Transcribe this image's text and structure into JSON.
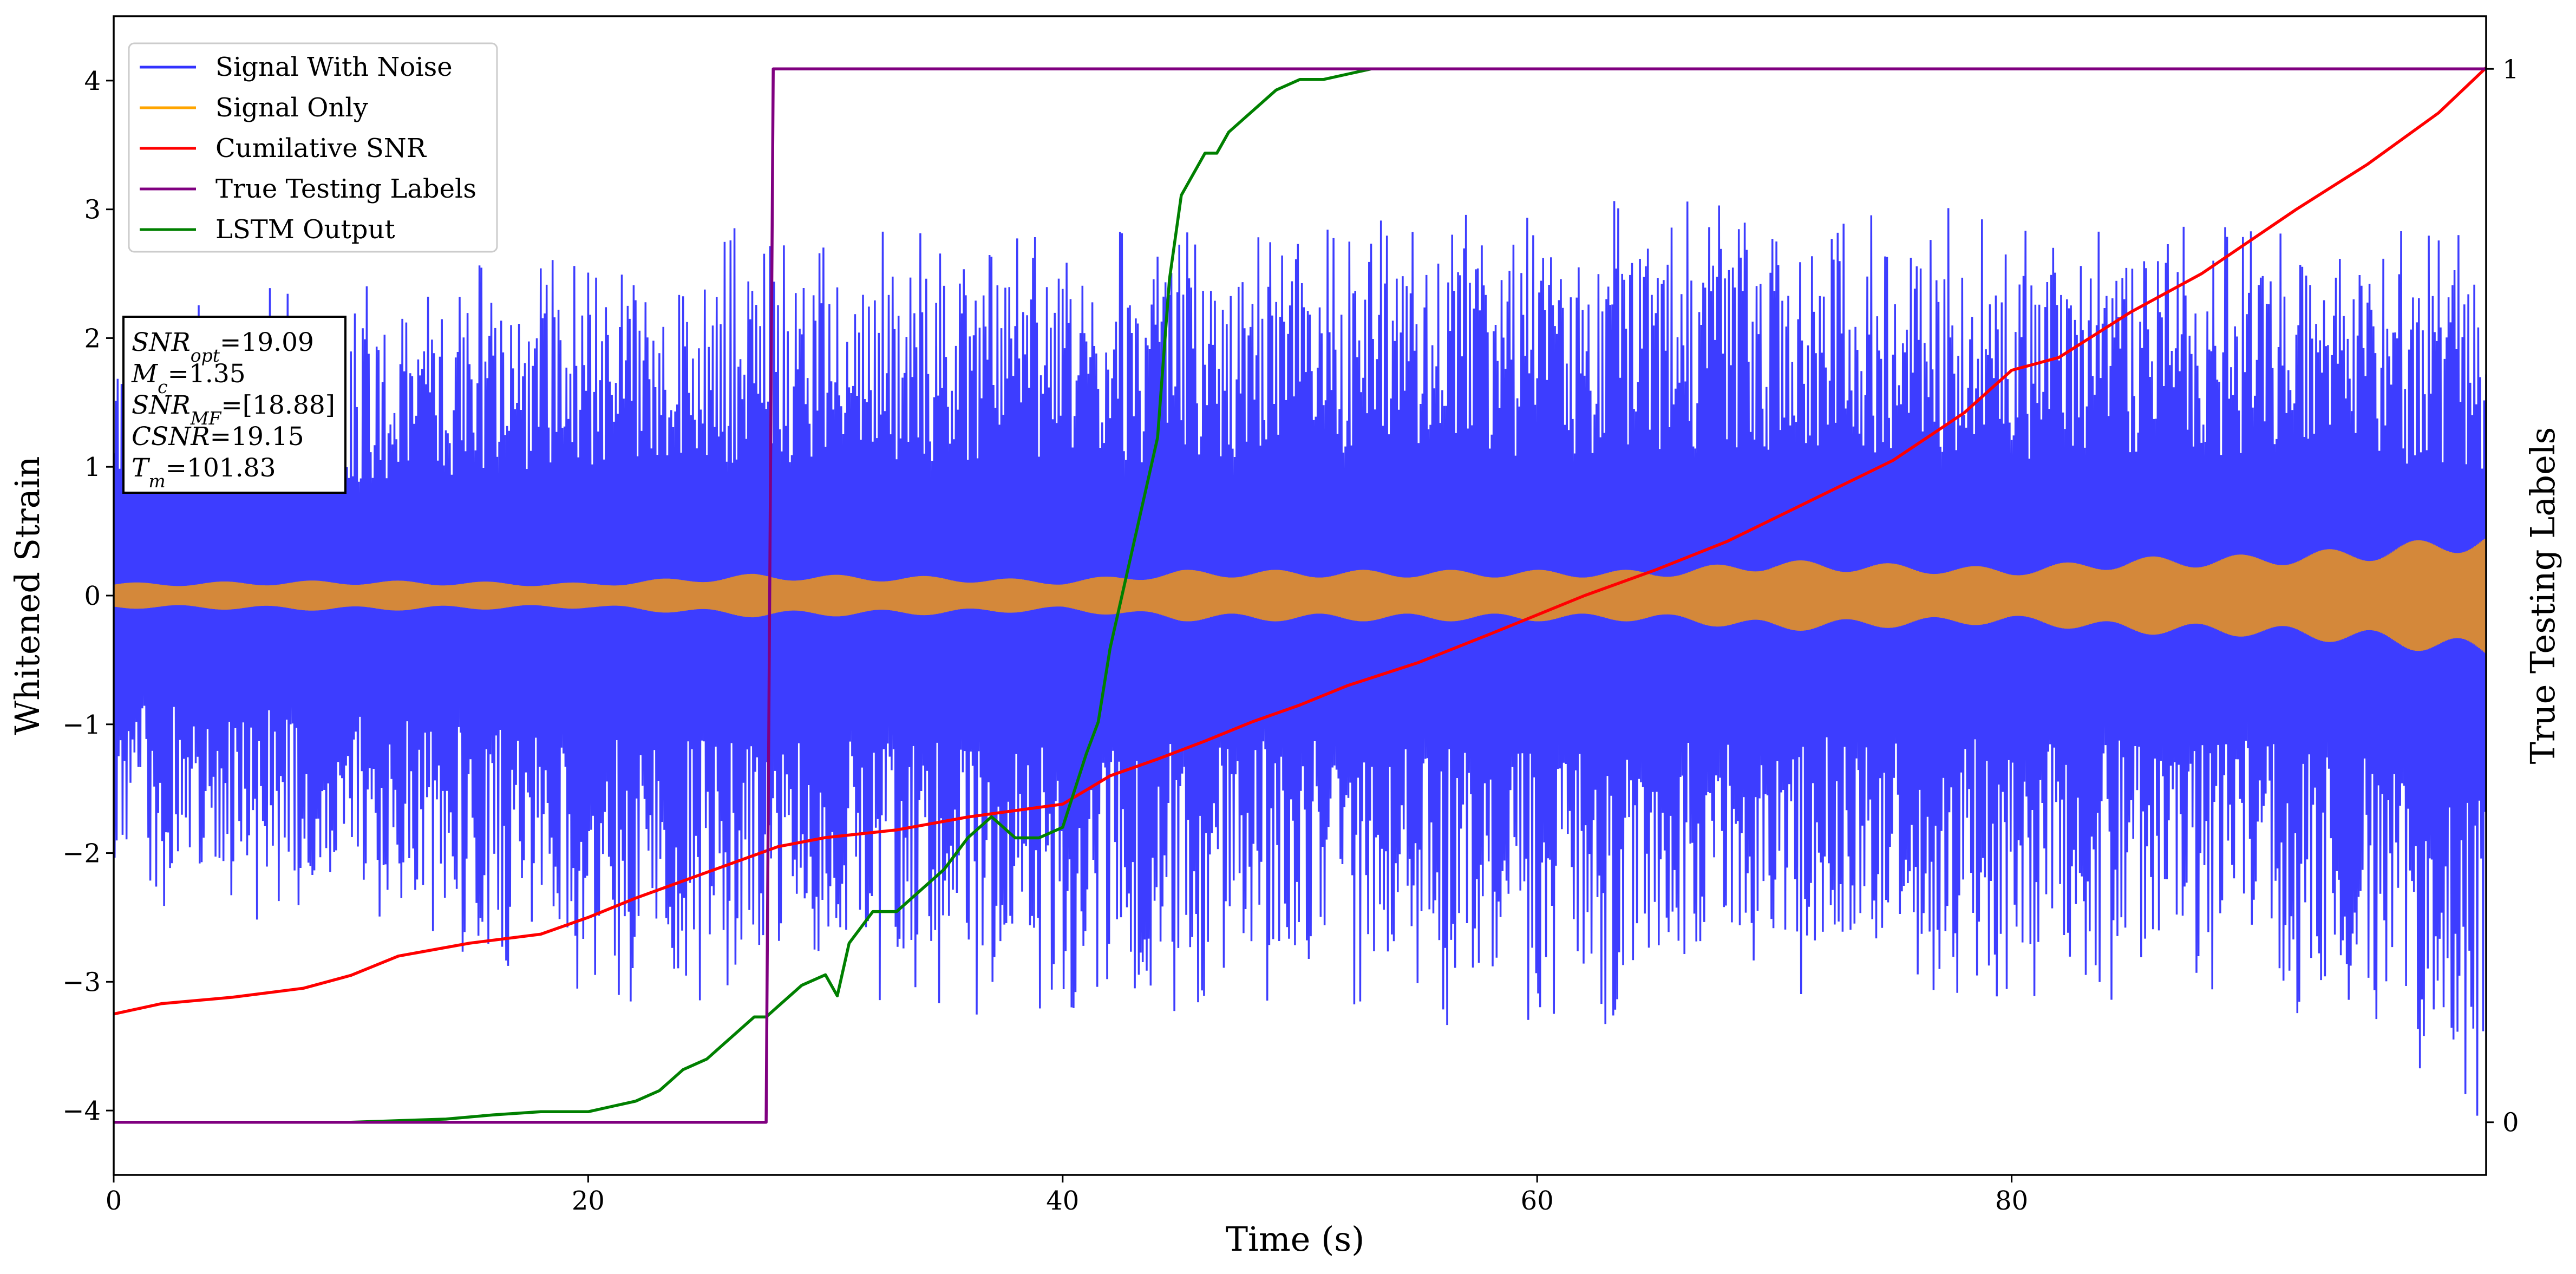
{
  "chart_data": {
    "type": "line",
    "xlabel": "Time (s)",
    "ylabel": "Whitened Strain",
    "y2label": "True Testing Labels",
    "xlim": [
      0,
      100
    ],
    "ylim": [
      -4.5,
      4.5
    ],
    "y2lim": [
      -0.05,
      1.05
    ],
    "x_ticks": [
      0,
      20,
      40,
      60,
      80
    ],
    "y_ticks": [
      -4,
      -3,
      -2,
      -1,
      0,
      1,
      2,
      3,
      4
    ],
    "y2_ticks": [
      0,
      1
    ],
    "grid": false,
    "legend_placement": "top-left",
    "annotation_lines": [
      {
        "sym": "SNR",
        "sub": "opt",
        "value": "=19.09"
      },
      {
        "sym": "M",
        "sub": "c",
        "value": "=1.35"
      },
      {
        "sym": "SNR",
        "sub": "MF",
        "value": "=[18.88]"
      },
      {
        "sym": "CSNR",
        "sub": "",
        "value": "=19.15"
      },
      {
        "sym": "T",
        "sub": "m",
        "value": "=101.83"
      }
    ],
    "series": [
      {
        "name": "Signal With Noise",
        "axis": "left",
        "color": "#3333ff",
        "kind": "noise_band",
        "x": [
          0,
          10,
          20,
          30,
          40,
          50,
          60,
          70,
          80,
          90,
          100
        ],
        "upper_envelope": [
          2.2,
          2.5,
          2.7,
          3.0,
          2.9,
          2.9,
          3.1,
          3.1,
          3.0,
          3.1,
          2.8
        ],
        "lower_envelope": [
          -2.4,
          -2.6,
          -3.2,
          -3.2,
          -3.3,
          -3.2,
          -3.5,
          -3.1,
          -3.2,
          -3.1,
          -4.1
        ]
      },
      {
        "name": "Signal Only",
        "axis": "left",
        "color": "#ffa500",
        "kind": "oscillation_envelope",
        "x": [
          0,
          10,
          20,
          27,
          35,
          40,
          45,
          50,
          55,
          60,
          65,
          70,
          75,
          80,
          85,
          90,
          95,
          100
        ],
        "amplitude": [
          0.1,
          0.12,
          0.1,
          0.17,
          0.15,
          0.12,
          0.2,
          0.2,
          0.2,
          0.2,
          0.2,
          0.28,
          0.25,
          0.22,
          0.3,
          0.32,
          0.38,
          0.5
        ]
      },
      {
        "name": "Cumilative SNR",
        "axis": "left",
        "color": "#ff0000",
        "x": [
          0,
          2,
          5,
          8,
          10,
          12,
          15,
          18,
          20,
          22,
          25,
          28,
          30,
          33,
          36,
          40,
          42,
          44,
          46,
          48,
          50,
          52,
          55,
          58,
          60,
          62,
          65,
          68,
          70,
          72,
          75,
          78,
          80,
          82,
          85,
          88,
          90,
          92,
          95,
          98,
          100
        ],
        "y": [
          -3.25,
          -3.17,
          -3.12,
          -3.05,
          -2.95,
          -2.8,
          -2.7,
          -2.63,
          -2.5,
          -2.35,
          -2.15,
          -1.95,
          -1.88,
          -1.82,
          -1.72,
          -1.62,
          -1.4,
          -1.27,
          -1.13,
          -0.98,
          -0.85,
          -0.7,
          -0.52,
          -0.3,
          -0.15,
          0.0,
          0.2,
          0.42,
          0.6,
          0.78,
          1.05,
          1.42,
          1.75,
          1.85,
          2.2,
          2.5,
          2.75,
          3.0,
          3.35,
          3.75,
          4.1
        ]
      },
      {
        "name": "True Testing Labels",
        "axis": "right",
        "color": "#800080",
        "x": [
          0,
          27.5,
          27.8,
          100
        ],
        "y": [
          0,
          0,
          1,
          1
        ]
      },
      {
        "name": "LSTM Output",
        "axis": "right",
        "color": "#008000",
        "x": [
          0,
          10,
          14,
          16,
          18,
          20,
          21,
          22,
          23,
          24,
          25,
          26,
          27,
          27.5,
          28,
          29,
          30,
          30.5,
          31,
          32,
          33,
          34,
          35,
          36,
          37,
          37.5,
          38,
          39,
          40,
          41,
          41.5,
          42,
          43,
          44,
          44.5,
          45,
          46,
          46.5,
          47,
          48,
          49,
          50,
          51,
          52,
          53,
          54,
          55,
          56,
          57,
          60,
          100
        ],
        "y": [
          0,
          0,
          0.003,
          0.007,
          0.01,
          0.01,
          0.015,
          0.02,
          0.03,
          0.05,
          0.06,
          0.08,
          0.1,
          0.1,
          0.11,
          0.13,
          0.14,
          0.12,
          0.17,
          0.2,
          0.2,
          0.22,
          0.24,
          0.27,
          0.29,
          0.28,
          0.27,
          0.27,
          0.28,
          0.35,
          0.38,
          0.45,
          0.55,
          0.65,
          0.8,
          0.88,
          0.92,
          0.92,
          0.94,
          0.96,
          0.98,
          0.99,
          0.99,
          0.995,
          1,
          1,
          1,
          1,
          1,
          1,
          1
        ]
      }
    ]
  }
}
